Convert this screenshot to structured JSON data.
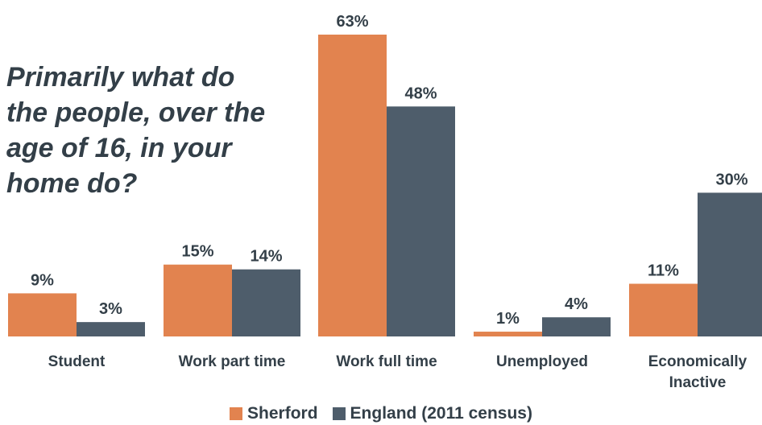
{
  "question_lines": [
    "Primarily what do",
    "the people, over the",
    "age of 16, in your",
    "home do?"
  ],
  "colors": {
    "sherford": "#e2834f",
    "england": "#4e5d6b",
    "text": "#333f48"
  },
  "chart_data": {
    "type": "bar",
    "categories": [
      [
        "Student"
      ],
      [
        "Work part time"
      ],
      [
        "Work full time"
      ],
      [
        "Unemployed"
      ],
      [
        "Economically",
        "Inactive"
      ]
    ],
    "series": [
      {
        "name": "Sherford",
        "values": [
          9,
          15,
          63,
          1,
          11
        ],
        "labels": [
          "9%",
          "15%",
          "63%",
          "1%",
          "11%"
        ]
      },
      {
        "name": "England (2011 census)",
        "values": [
          3,
          14,
          48,
          4,
          30
        ],
        "labels": [
          "3%",
          "14%",
          "48%",
          "4%",
          "30%"
        ]
      }
    ],
    "ylim": [
      0,
      63
    ],
    "grid": false,
    "legend_position": "bottom-center"
  }
}
